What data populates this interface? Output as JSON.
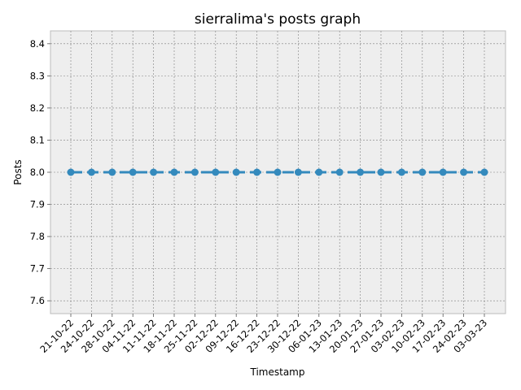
{
  "chart_data": {
    "type": "line",
    "title": "sierralima's posts graph",
    "xlabel": "Timestamp",
    "ylabel": "Posts",
    "categories": [
      "21-10-22",
      "24-10-22",
      "28-10-22",
      "04-11-22",
      "11-11-22",
      "18-11-22",
      "25-11-22",
      "02-12-22",
      "09-12-22",
      "16-12-22",
      "23-12-22",
      "30-12-22",
      "06-01-23",
      "13-01-23",
      "20-01-23",
      "27-01-23",
      "03-02-23",
      "10-02-23",
      "17-02-23",
      "24-02-23",
      "03-03-23"
    ],
    "series": [
      {
        "name": "Posts",
        "values": [
          8,
          8,
          8,
          8,
          8,
          8,
          8,
          8,
          8,
          8,
          8,
          8,
          8,
          8,
          8,
          8,
          8,
          8,
          8,
          8,
          8
        ]
      }
    ],
    "ylim": [
      7.56,
      8.44
    ],
    "yticks": [
      7.6,
      7.7,
      7.8,
      7.9,
      8.0,
      8.1,
      8.2,
      8.3,
      8.4
    ],
    "ytick_labels": [
      "7.6",
      "7.7",
      "7.8",
      "7.9",
      "8.0",
      "8.1",
      "8.2",
      "8.3",
      "8.4"
    ],
    "grid": true,
    "line_style": "dashed",
    "colors": {
      "line": "#348abd",
      "axes_bg": "#eeeeee",
      "grid": "#7f7f7f",
      "spine": "#bcbcbc"
    }
  }
}
